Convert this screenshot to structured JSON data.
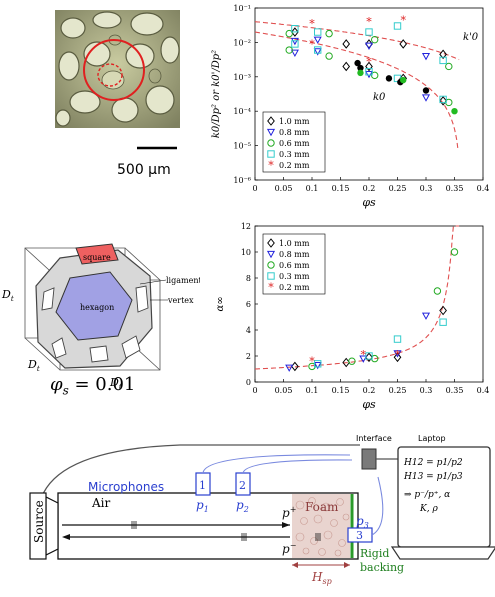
{
  "photo": {
    "scale_label": "500 µm"
  },
  "cell": {
    "labels": {
      "square": "square",
      "hexagon": "hexagon",
      "ligament": "ligament",
      "vertex": "vertex",
      "dim": "D",
      "dim_sub": "t"
    },
    "phi_label": "φ",
    "phi_sub": "s",
    "phi_value": " = 0.01"
  },
  "chart_data": [
    {
      "type": "scatter",
      "ylabel": "k0/Dp² or k0'/Dp²",
      "xlabel": "φs",
      "xlim": [
        0,
        0.4
      ],
      "ylim_log10": [
        -6,
        -1
      ],
      "x_ticks": [
        "0",
        "0.05",
        "0.1",
        "0.15",
        "0.2",
        "0.25",
        "0.3",
        "0.35",
        "0.4"
      ],
      "y_ticks": [
        "10⁻⁶",
        "10⁻⁵",
        "10⁻⁴",
        "10⁻³",
        "10⁻²",
        "10⁻¹"
      ],
      "curve_labels": [
        "k'0",
        "k0"
      ],
      "legend": [
        "1.0 mm",
        "0.8 mm",
        "0.6 mm",
        "0.3 mm",
        "0.2 mm"
      ],
      "series": [
        {
          "name": "1.0 mm",
          "marker": "diamond-open",
          "color": "#000000",
          "points": [
            [
              0.07,
              0.02
            ],
            [
              0.16,
              0.009
            ],
            [
              0.2,
              0.009
            ],
            [
              0.26,
              0.009
            ],
            [
              0.33,
              0.0045
            ],
            [
              0.16,
              0.002
            ],
            [
              0.2,
              0.002
            ],
            [
              0.26,
              0.0009
            ],
            [
              0.33,
              0.0002
            ]
          ]
        },
        {
          "name": "0.8 mm",
          "marker": "triangle-down",
          "color": "#2222dd",
          "points": [
            [
              0.07,
              0.011
            ],
            [
              0.11,
              0.012
            ],
            [
              0.2,
              0.008
            ],
            [
              0.3,
              0.004
            ],
            [
              0.07,
              0.005
            ],
            [
              0.11,
              0.0055
            ],
            [
              0.2,
              0.0012
            ],
            [
              0.3,
              0.00025
            ]
          ]
        },
        {
          "name": "0.6 mm",
          "marker": "circle-open",
          "color": "#22aa22",
          "points": [
            [
              0.06,
              0.018
            ],
            [
              0.13,
              0.018
            ],
            [
              0.21,
              0.012
            ],
            [
              0.34,
              0.002
            ],
            [
              0.06,
              0.006
            ],
            [
              0.13,
              0.004
            ],
            [
              0.21,
              0.0011
            ],
            [
              0.34,
              0.00018
            ]
          ]
        },
        {
          "name": "0.3 mm",
          "marker": "square-open",
          "color": "#33cccc",
          "points": [
            [
              0.07,
              0.025
            ],
            [
              0.11,
              0.02
            ],
            [
              0.2,
              0.02
            ],
            [
              0.25,
              0.03
            ],
            [
              0.33,
              0.003
            ],
            [
              0.07,
              0.009
            ],
            [
              0.11,
              0.006
            ],
            [
              0.2,
              0.0014
            ],
            [
              0.25,
              0.0009
            ],
            [
              0.33,
              0.00022
            ]
          ]
        },
        {
          "name": "0.2 mm",
          "marker": "star",
          "color": "#dd2222",
          "points": [
            [
              0.1,
              0.035
            ],
            [
              0.2,
              0.04
            ],
            [
              0.26,
              0.045
            ],
            [
              0.1,
              0.009
            ],
            [
              0.2,
              0.0028
            ]
          ]
        },
        {
          "name": "filled",
          "marker": "filled",
          "color": "#000000",
          "points": [
            [
              0.18,
              0.0025
            ],
            [
              0.185,
              0.0018
            ],
            [
              0.235,
              0.0009
            ],
            [
              0.255,
              0.0007
            ],
            [
              0.3,
              0.0004
            ]
          ]
        },
        {
          "name": "filled-green",
          "marker": "filled",
          "color": "#22bb22",
          "points": [
            [
              0.185,
              0.0013
            ],
            [
              0.26,
              0.0008
            ],
            [
              0.35,
              0.0001
            ]
          ]
        }
      ]
    },
    {
      "type": "scatter",
      "ylabel": "α∞",
      "xlabel": "φs",
      "xlim": [
        0,
        0.4
      ],
      "ylim": [
        0,
        12
      ],
      "x_ticks": [
        "0",
        "0.05",
        "0.1",
        "0.15",
        "0.2",
        "0.25",
        "0.3",
        "0.35",
        "0.4"
      ],
      "y_ticks": [
        "0",
        "2",
        "4",
        "6",
        "8",
        "10",
        "12"
      ],
      "legend": [
        "1.0 mm",
        "0.8 mm",
        "0.6 mm",
        "0.3 mm",
        "0.2 mm"
      ],
      "series": [
        {
          "name": "1.0 mm",
          "marker": "diamond-open",
          "color": "#000000",
          "points": [
            [
              0.07,
              1.2
            ],
            [
              0.16,
              1.5
            ],
            [
              0.2,
              1.9
            ],
            [
              0.25,
              1.9
            ],
            [
              0.33,
              5.5
            ]
          ]
        },
        {
          "name": "0.8 mm",
          "marker": "triangle-down",
          "color": "#2222dd",
          "points": [
            [
              0.06,
              1.1
            ],
            [
              0.11,
              1.3
            ],
            [
              0.19,
              1.8
            ],
            [
              0.25,
              2.2
            ],
            [
              0.3,
              5.1
            ]
          ]
        },
        {
          "name": "0.6 mm",
          "marker": "circle-open",
          "color": "#22aa22",
          "points": [
            [
              0.1,
              1.2
            ],
            [
              0.17,
              1.6
            ],
            [
              0.21,
              1.8
            ],
            [
              0.32,
              7.0
            ],
            [
              0.35,
              10.0
            ]
          ]
        },
        {
          "name": "0.3 mm",
          "marker": "square-open",
          "color": "#33cccc",
          "points": [
            [
              0.11,
              1.4
            ],
            [
              0.2,
              2.0
            ],
            [
              0.25,
              3.3
            ],
            [
              0.33,
              4.6
            ]
          ]
        },
        {
          "name": "0.2 mm",
          "marker": "star",
          "color": "#dd2222",
          "points": [
            [
              0.1,
              1.6
            ],
            [
              0.19,
              2.1
            ],
            [
              0.25,
              2.1
            ]
          ]
        }
      ]
    }
  ],
  "diagram": {
    "microphones": "Microphones",
    "mic1": "1",
    "mic2": "2",
    "mic3": "3",
    "p1": "p",
    "p1_sub": "1",
    "p2": "p",
    "p2_sub": "2",
    "p3": "p",
    "p3_sub": "3",
    "p_plus": "p",
    "p_plus_sup": "+",
    "p_minus": "p",
    "p_minus_sup": "−",
    "air": "Air",
    "foam": "Foam",
    "source": "Source",
    "rigid1": "Rigid",
    "rigid2": "backing",
    "hsp": "H",
    "hsp_sub": "sp",
    "interface": "Interface",
    "laptop": "Laptop",
    "eq1": "H12 = p1/p2",
    "eq2": "H13 = p1/p3",
    "eq3": "⇒ p⁻/p⁺, α",
    "eq4": "K, ρ"
  }
}
